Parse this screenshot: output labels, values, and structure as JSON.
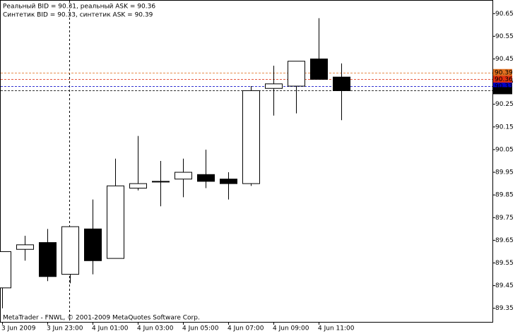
{
  "chart_data": {
    "type": "candlestick",
    "info_lines": [
      "Реальный BID = 90.31, реальный ASK = 90.36",
      "Синтетик BID = 90.33, синтетик ASK = 90.39"
    ],
    "footer": "MetaTrader - FNWL, © 2001-2009 MetaQuotes Software Corp.",
    "x": [
      "3 Jun 2009",
      null,
      "3 Jun 23:00",
      null,
      "4 Jun 01:00",
      null,
      "4 Jun 03:00",
      null,
      "4 Jun 05:00",
      null,
      "4 Jun 07:00",
      null,
      "4 Jun 09:00",
      null,
      "4 Jun 11:00",
      null
    ],
    "open": [
      89.44,
      89.61,
      89.64,
      89.5,
      89.7,
      89.57,
      89.88,
      89.91,
      89.92,
      89.94,
      89.92,
      89.9,
      90.32,
      90.33,
      90.45,
      90.37
    ],
    "high": [
      89.6,
      89.67,
      89.7,
      89.71,
      89.83,
      90.01,
      90.11,
      90.0,
      90.01,
      90.05,
      89.95,
      90.33,
      90.42,
      90.44,
      90.63,
      90.43
    ],
    "low": [
      89.35,
      89.56,
      89.47,
      89.46,
      89.5,
      89.57,
      89.87,
      89.8,
      89.84,
      89.88,
      89.83,
      89.89,
      90.2,
      90.21,
      90.36,
      90.18
    ],
    "close": [
      89.6,
      89.63,
      89.49,
      89.71,
      89.56,
      89.89,
      89.9,
      89.91,
      89.95,
      89.91,
      89.9,
      90.31,
      90.34,
      90.44,
      90.36,
      90.31
    ],
    "up_color": "#ffffff",
    "down_color": "#000000",
    "ylim": [
      89.29,
      90.71
    ],
    "yticks": [
      89.35,
      89.45,
      89.55,
      89.65,
      89.75,
      89.85,
      89.95,
      90.05,
      90.15,
      90.25,
      90.35,
      90.45,
      90.55,
      90.65
    ],
    "price_lines": [
      {
        "value": 90.39,
        "color": "#e07020"
      },
      {
        "value": 90.36,
        "color": "#e03010"
      },
      {
        "value": 90.33,
        "color": "#0000c8"
      },
      {
        "value": 90.31,
        "color": "#000000"
      }
    ]
  }
}
